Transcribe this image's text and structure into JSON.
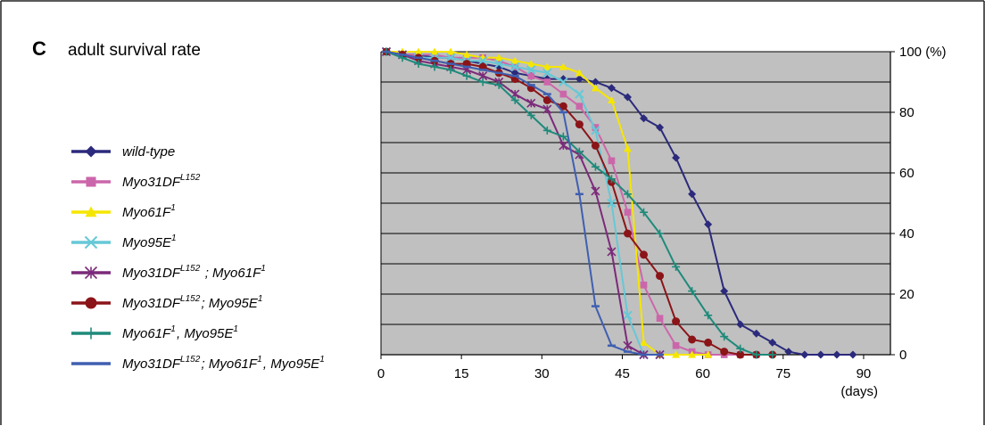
{
  "panel": {
    "letter": "C",
    "title": "adult survival rate"
  },
  "chart_data": {
    "type": "line",
    "title": "adult survival rate",
    "xlabel": "(days)",
    "ylabel": "100 (%)",
    "xlim": [
      0,
      95
    ],
    "ylim": [
      0,
      100
    ],
    "x_ticks": [
      "0",
      "15",
      "30",
      "45",
      "60",
      "75",
      "90"
    ],
    "y_ticks": [
      "0",
      "20",
      "40",
      "60",
      "80",
      "100 (%)"
    ],
    "y_axis_side": "right",
    "grid": "horizontal",
    "plot_background": "#c0c0c0",
    "legend_position": "left",
    "series": [
      {
        "name": "wild-type",
        "color": "#2b2a7c",
        "marker": "diamond",
        "x": [
          1,
          4,
          7,
          10,
          13,
          16,
          19,
          22,
          25,
          28,
          31,
          34,
          37,
          40,
          43,
          46,
          49,
          52,
          55,
          58,
          61,
          64,
          67,
          70,
          73,
          76,
          79,
          82,
          85,
          88
        ],
        "y": [
          100,
          99,
          99,
          98,
          98,
          97,
          96,
          95,
          93,
          92,
          91,
          91,
          91,
          90,
          88,
          85,
          78,
          75,
          65,
          53,
          43,
          21,
          10,
          7,
          4,
          1,
          0,
          0,
          0,
          0
        ]
      },
      {
        "name": "Myo31DF",
        "sup": "L152",
        "color": "#cc66aa",
        "marker": "square",
        "x": [
          1,
          4,
          7,
          10,
          13,
          16,
          19,
          22,
          25,
          28,
          31,
          34,
          37,
          40,
          43,
          46,
          49,
          52,
          55,
          58,
          61,
          64,
          67,
          70
        ],
        "y": [
          100,
          99,
          99,
          99,
          98,
          98,
          98,
          97,
          95,
          92,
          90,
          86,
          82,
          75,
          64,
          47,
          23,
          12,
          3,
          1,
          0,
          0,
          0,
          0
        ]
      },
      {
        "name": "Myo61F",
        "sup": "1",
        "color": "#f5e600",
        "marker": "triangle",
        "x": [
          1,
          4,
          7,
          10,
          13,
          16,
          19,
          22,
          25,
          28,
          31,
          34,
          37,
          40,
          43,
          46,
          49,
          52,
          55,
          58,
          61
        ],
        "y": [
          100,
          100,
          100,
          100,
          100,
          99,
          98,
          98,
          97,
          96,
          95,
          95,
          93,
          88,
          84,
          68,
          4,
          0,
          0,
          0,
          0
        ]
      },
      {
        "name": "Myo95E",
        "sup": "1",
        "color": "#66c8d6",
        "marker": "x",
        "x": [
          1,
          4,
          7,
          10,
          13,
          16,
          19,
          22,
          25,
          28,
          31,
          34,
          37,
          40,
          43,
          46,
          49,
          52
        ],
        "y": [
          100,
          99,
          98,
          98,
          98,
          97,
          97,
          96,
          95,
          94,
          93,
          90,
          86,
          74,
          50,
          13,
          0,
          0
        ]
      },
      {
        "name": "Myo31DF",
        "sup": "L152",
        "name2": " ; Myo61F",
        "sup2": "1",
        "color": "#7b2a7a",
        "marker": "star",
        "x": [
          1,
          4,
          7,
          10,
          13,
          16,
          19,
          22,
          25,
          28,
          31,
          34,
          37,
          40,
          43,
          46,
          49,
          52
        ],
        "y": [
          100,
          99,
          97,
          96,
          95,
          94,
          92,
          90,
          86,
          83,
          81,
          69,
          66,
          54,
          34,
          3,
          0,
          0
        ]
      },
      {
        "name": "Myo31DF",
        "sup": "L152",
        "name2": "; Myo95E",
        "sup2": "1",
        "color": "#8b1418",
        "marker": "circle",
        "x": [
          1,
          4,
          7,
          10,
          13,
          16,
          19,
          22,
          25,
          28,
          31,
          34,
          37,
          40,
          43,
          46,
          49,
          52,
          55,
          58,
          61,
          64,
          67,
          70,
          73
        ],
        "y": [
          100,
          99,
          98,
          97,
          96,
          96,
          95,
          93,
          91,
          88,
          84,
          82,
          76,
          69,
          57,
          40,
          33,
          26,
          11,
          5,
          4,
          1,
          0,
          0,
          0
        ]
      },
      {
        "name": "Myo61F",
        "sup": "1",
        "name2": ", Myo95E",
        "sup2": "1",
        "color": "#1e8a7a",
        "marker": "plus",
        "x": [
          1,
          4,
          7,
          10,
          13,
          16,
          19,
          22,
          25,
          28,
          31,
          34,
          37,
          40,
          43,
          46,
          49,
          52,
          55,
          58,
          61,
          64,
          67,
          70,
          73
        ],
        "y": [
          100,
          98,
          96,
          95,
          94,
          92,
          90,
          89,
          84,
          79,
          74,
          72,
          67,
          62,
          58,
          53,
          47,
          40,
          29,
          21,
          13,
          6,
          2,
          0,
          0
        ]
      },
      {
        "name": "Myo31DF",
        "sup": "L152",
        "name2": "; Myo61F",
        "sup2": "1",
        "name3": ", Myo95E",
        "sup3": "1",
        "color": "#3f5fb0",
        "marker": "dash",
        "x": [
          1,
          4,
          7,
          10,
          13,
          16,
          19,
          22,
          25,
          28,
          31,
          34,
          37,
          40,
          43,
          46,
          49,
          52
        ],
        "y": [
          100,
          99,
          98,
          97,
          96,
          95,
          94,
          93,
          92,
          89,
          86,
          80,
          53,
          16,
          3,
          1,
          0,
          0
        ]
      }
    ]
  }
}
